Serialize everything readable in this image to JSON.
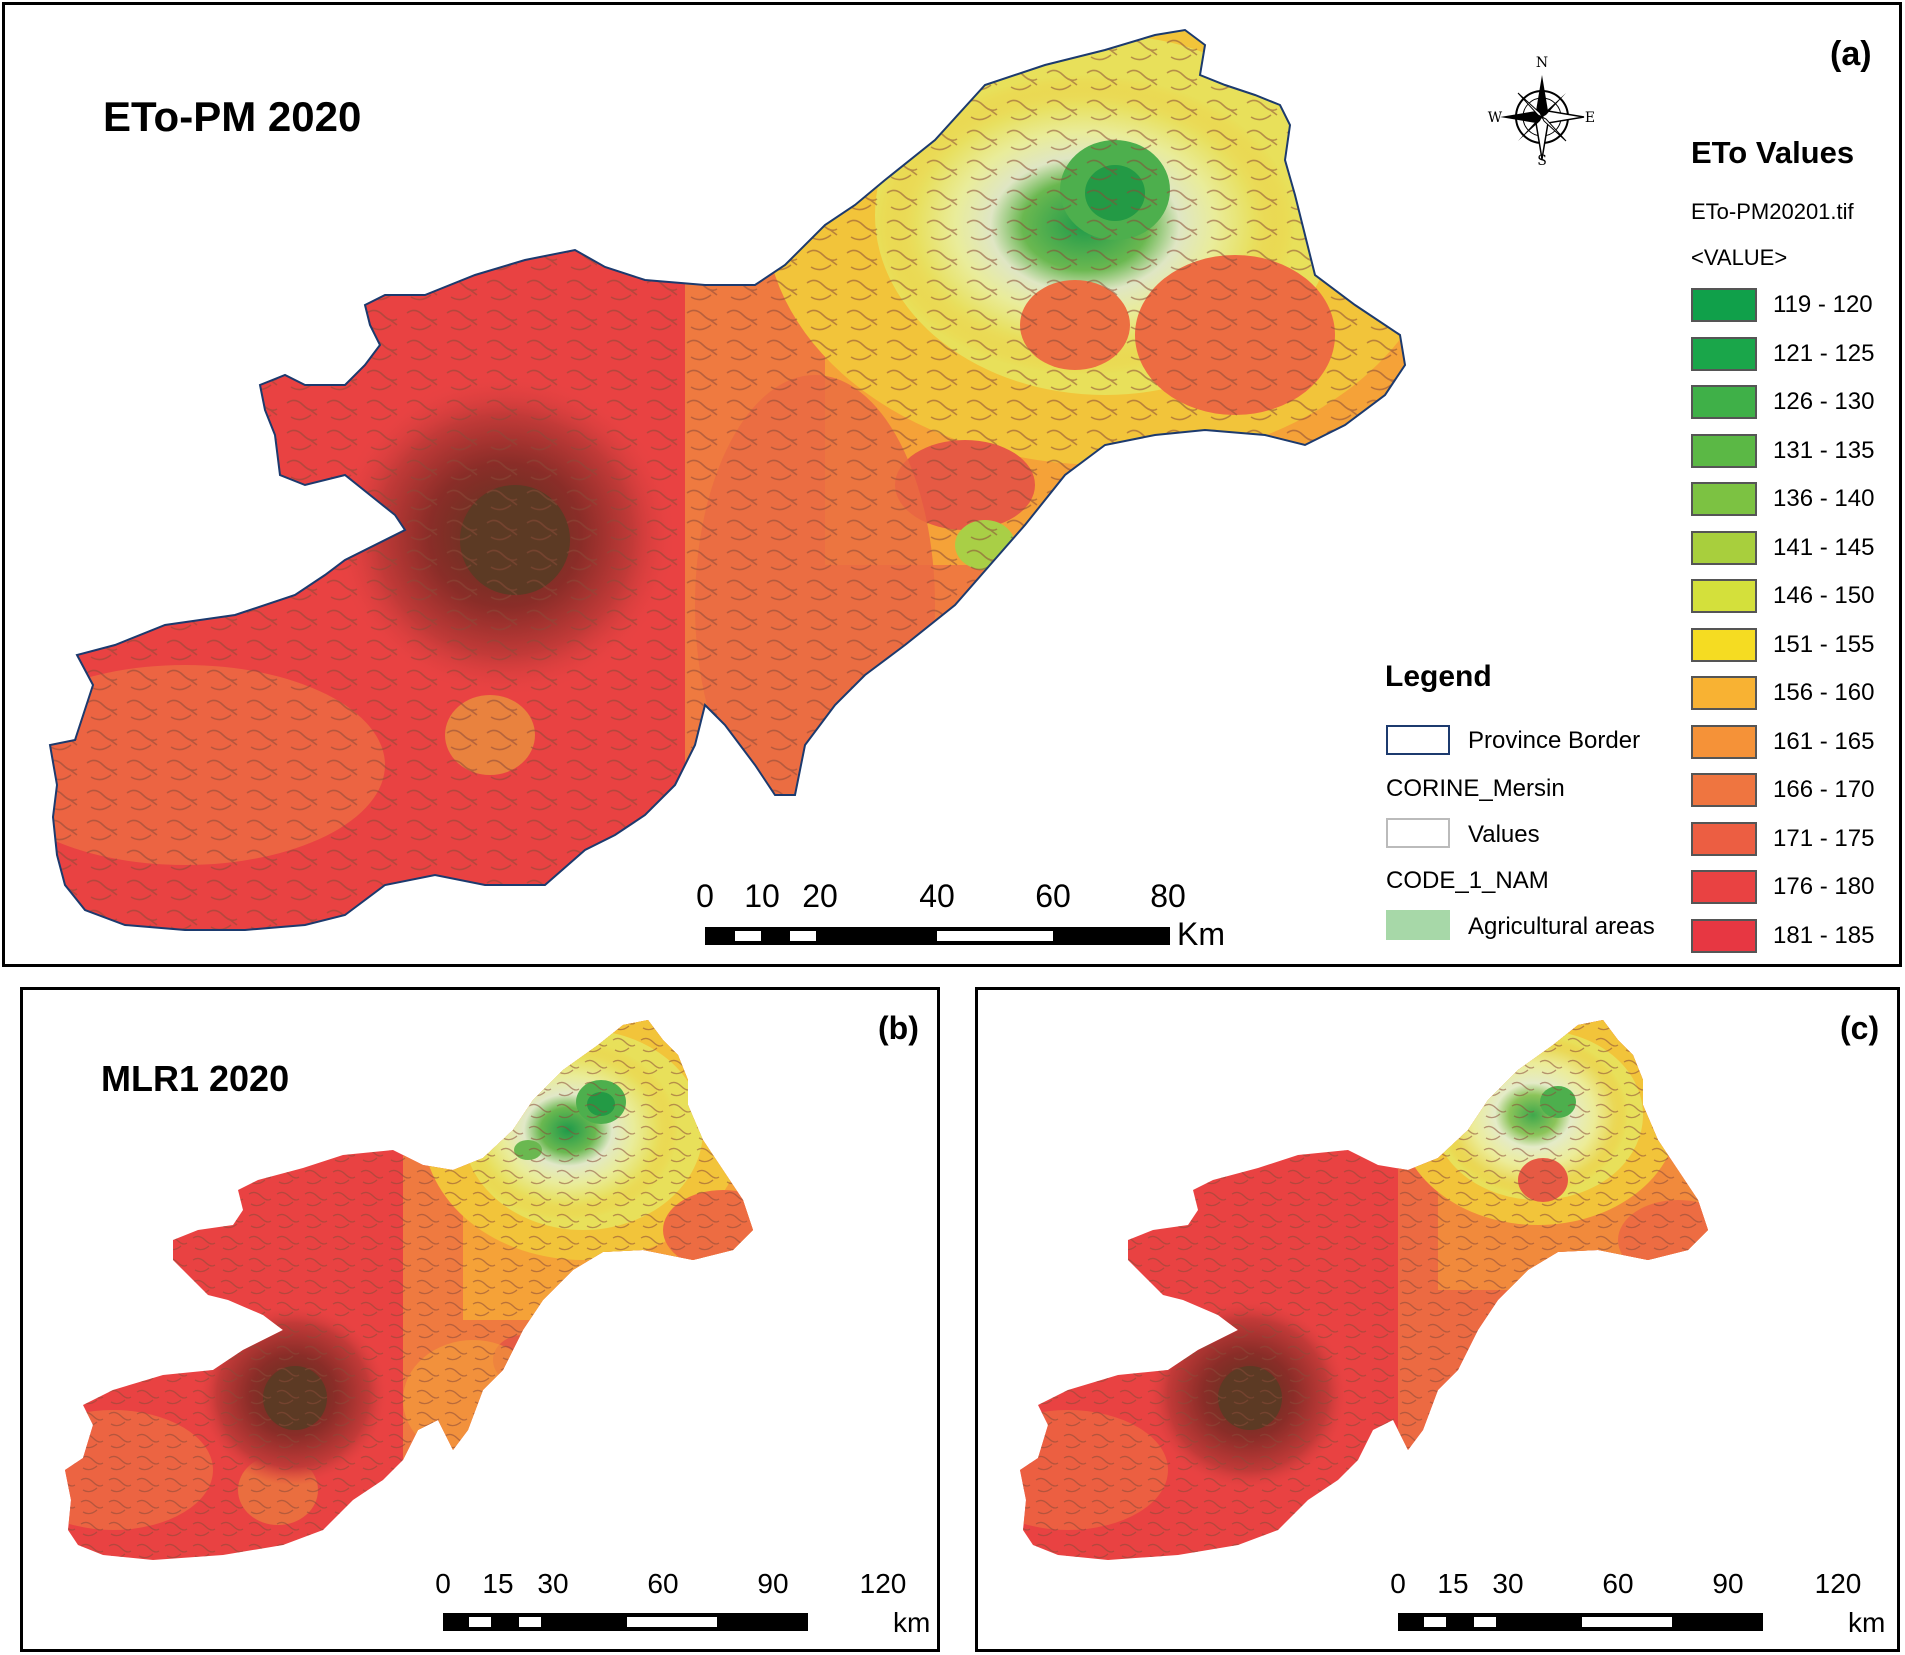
{
  "panels": {
    "a": {
      "label": "(a)",
      "title": "ETo-PM 2020"
    },
    "b": {
      "label": "(b)",
      "title": "MLR1 2020"
    },
    "c": {
      "label": "(c)",
      "title": ""
    }
  },
  "compass": {
    "n": "N",
    "s": "S",
    "e": "E",
    "w": "W"
  },
  "eto_legend": {
    "heading": "ETo Values",
    "file": "ETo-PM20201.tif",
    "field": "<VALUE>",
    "classes": [
      {
        "range": "119 - 120",
        "color": "#10a04a"
      },
      {
        "range": "121 - 125",
        "color": "#1aa64a"
      },
      {
        "range": "126 - 130",
        "color": "#3fb048"
      },
      {
        "range": "131 - 135",
        "color": "#5bb845"
      },
      {
        "range": "136 - 140",
        "color": "#7cc242"
      },
      {
        "range": "141 - 145",
        "color": "#a8cf3d"
      },
      {
        "range": "146 - 150",
        "color": "#d4e03b"
      },
      {
        "range": "151 - 155",
        "color": "#f5dc22"
      },
      {
        "range": "156 - 160",
        "color": "#f8b233"
      },
      {
        "range": "161 - 165",
        "color": "#f59238"
      },
      {
        "range": "166 - 170",
        "color": "#ef7540"
      },
      {
        "range": "171 - 175",
        "color": "#ec5e42"
      },
      {
        "range": "176 - 180",
        "color": "#e94242"
      },
      {
        "range": "181 - 185",
        "color": "#e73742"
      }
    ]
  },
  "legend": {
    "heading": "Legend",
    "province_border": "Province Border",
    "corine": "CORINE_Mersin",
    "values": "Values",
    "code": "CODE_1_NAM",
    "agricultural": "Agricultural areas",
    "agri_color": "#a7d8a8"
  },
  "scalebars": {
    "a": {
      "ticks": [
        "0",
        "10",
        "20",
        "40",
        "60",
        "80"
      ],
      "unit": "Km"
    },
    "b": {
      "ticks": [
        "0",
        "15",
        "30",
        "60",
        "90",
        "120"
      ],
      "unit": "km"
    },
    "c": {
      "ticks": [
        "0",
        "15",
        "30",
        "60",
        "90",
        "120"
      ],
      "unit": "km"
    }
  }
}
